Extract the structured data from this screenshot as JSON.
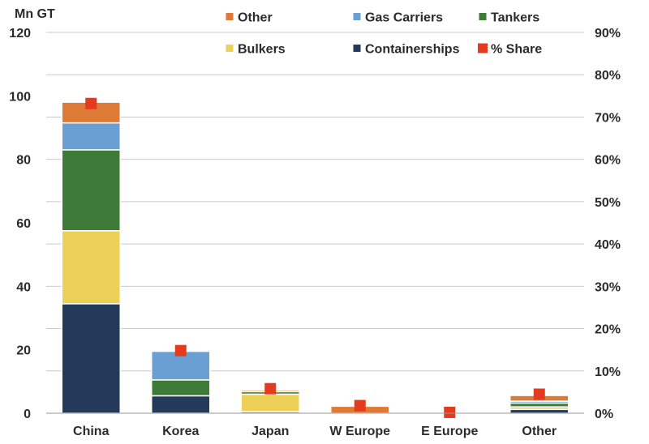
{
  "chart_data": {
    "type": "bar",
    "stacked": true,
    "ylabel": "Mn GT",
    "ylim": [
      0,
      120
    ],
    "yticks": [
      0,
      20,
      40,
      60,
      80,
      100,
      120
    ],
    "y2lim": [
      0,
      0.9
    ],
    "y2ticks": [
      "0%",
      "10%",
      "20%",
      "30%",
      "40%",
      "50%",
      "60%",
      "70%",
      "80%",
      "90%"
    ],
    "grid": true,
    "legend_position": "top",
    "categories": [
      "China",
      "Korea",
      "Japan",
      "W Europe",
      "E Europe",
      "Other"
    ],
    "series": [
      {
        "name": "Containerships",
        "color": "#243a5a",
        "values": [
          34.5,
          5.5,
          0.5,
          0,
          0,
          1.2
        ]
      },
      {
        "name": "Bulkers",
        "color": "#ecd058",
        "values": [
          23,
          0,
          5.5,
          0,
          0,
          0.8
        ]
      },
      {
        "name": "Tankers",
        "color": "#3e7b38",
        "values": [
          25.5,
          5,
          0.8,
          0,
          0,
          1.2
        ]
      },
      {
        "name": "Gas Carriers",
        "color": "#6a9fd3",
        "values": [
          8.5,
          9,
          0,
          0,
          0,
          0.6
        ]
      },
      {
        "name": "Other",
        "color": "#dd7b36",
        "values": [
          6.5,
          0,
          0.5,
          2.2,
          0,
          1.8
        ]
      }
    ],
    "share": {
      "name": "% Share",
      "color": "#e33b1f",
      "axis": "right",
      "values": [
        0.732,
        0.148,
        0.058,
        0.018,
        0.002,
        0.045
      ]
    },
    "legend_order": [
      "Other",
      "Gas Carriers",
      "Tankers",
      "Bulkers",
      "Containerships",
      "% Share"
    ]
  }
}
